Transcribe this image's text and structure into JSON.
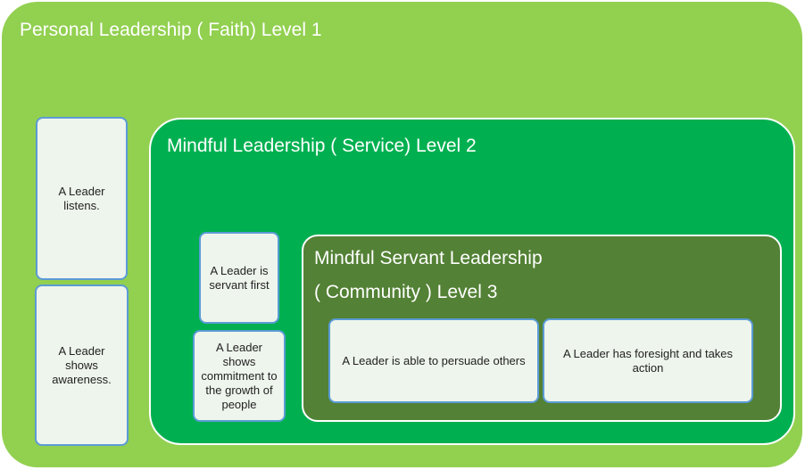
{
  "level1": {
    "title": "Personal Leadership ( Faith) Level 1"
  },
  "level2": {
    "title": "Mindful Leadership ( Service) Level 2"
  },
  "level3": {
    "title_line1": "Mindful Servant Leadership",
    "title_line2": "( Community ) Level 3"
  },
  "cards": {
    "listens": "A  Leader listens.",
    "awareness": "A  Leader shows awareness.",
    "servant_first": "A Leader is servant first",
    "commitment": "A Leader shows commitment to the growth of people",
    "persuade": "A Leader is able to persuade others",
    "foresight": "A Leader has foresight and takes action"
  },
  "colors": {
    "level1_bg": "#92d050",
    "level2_bg": "#00b050",
    "level3_bg": "#538135",
    "card_bg": "#eef5ec",
    "card_border": "#5b9bd5"
  }
}
